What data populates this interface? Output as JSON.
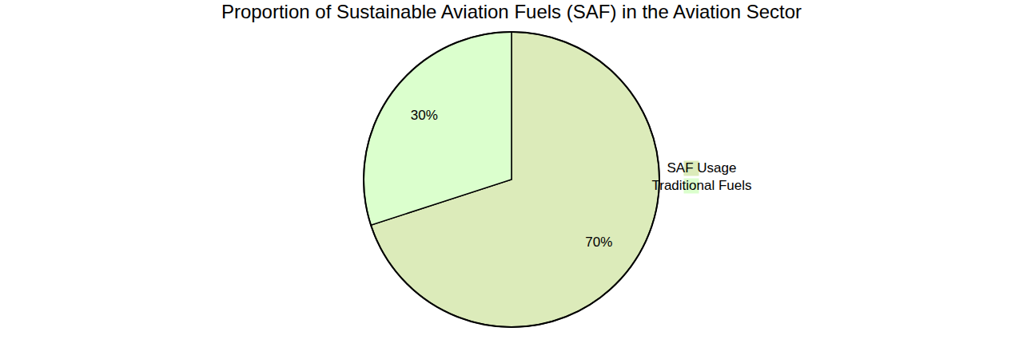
{
  "chart_data": {
    "type": "pie",
    "title": "Proportion of Sustainable Aviation Fuels (SAF) in the Aviation Sector",
    "categories": [
      "SAF Usage",
      "Traditional Fuels"
    ],
    "values": [
      70,
      30
    ],
    "value_labels": [
      "70%",
      "30%"
    ],
    "colors": [
      "#dcebba",
      "#dbffcd"
    ],
    "data_labels": true,
    "legend": "right"
  }
}
